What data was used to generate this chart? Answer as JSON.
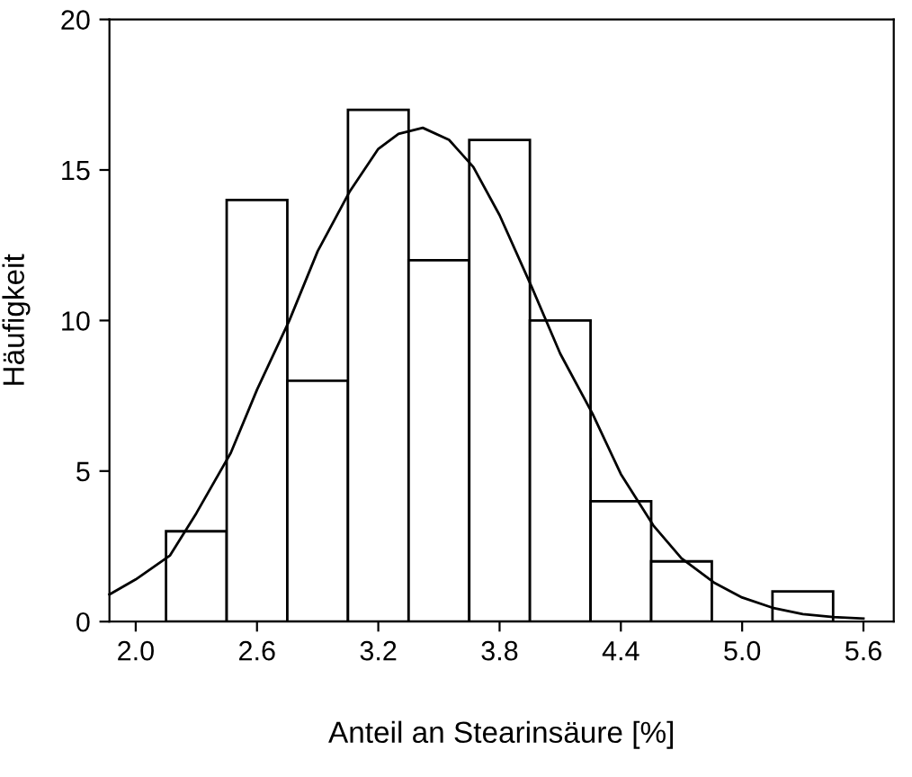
{
  "chart_data": {
    "type": "histogram",
    "xlabel": "Anteil an Stearinsäure [%]",
    "ylabel": "Häufigkeit",
    "bins": [
      2.15,
      2.45,
      2.75,
      3.05,
      3.35,
      3.65,
      3.95,
      4.25,
      4.55,
      4.85,
      5.15,
      5.45
    ],
    "values": [
      3,
      14,
      8,
      17,
      12,
      16,
      10,
      4,
      2,
      0,
      1
    ],
    "color": "#ffffff",
    "series": [
      {
        "type": "line",
        "color": "#000000",
        "x": [
          1.87,
          2.0,
          2.17,
          2.3,
          2.47,
          2.6,
          2.76,
          2.9,
          3.06,
          3.2,
          3.3,
          3.42,
          3.55,
          3.67,
          3.8,
          3.96,
          4.1,
          4.26,
          4.4,
          4.56,
          4.7,
          4.86,
          5.0,
          5.15,
          5.3,
          5.45,
          5.6
        ],
        "values": [
          0.9,
          1.4,
          2.2,
          3.6,
          5.6,
          7.7,
          10.0,
          12.3,
          14.3,
          15.7,
          16.2,
          16.4,
          16.0,
          15.1,
          13.5,
          11.1,
          8.9,
          6.9,
          4.9,
          3.2,
          2.1,
          1.3,
          0.8,
          0.46,
          0.25,
          0.15,
          0.1
        ]
      }
    ],
    "xlim": [
      1.87,
      5.75
    ],
    "ylim": [
      0,
      20
    ],
    "xticks": [
      {
        "value": 2.0,
        "label": "2.0"
      },
      2.6,
      3.2,
      3.8,
      4.4,
      {
        "value": 5.0,
        "label": "5.0"
      },
      5.6
    ],
    "yticks": [
      0,
      5,
      10,
      15,
      20
    ],
    "grid": false,
    "legend": false
  }
}
